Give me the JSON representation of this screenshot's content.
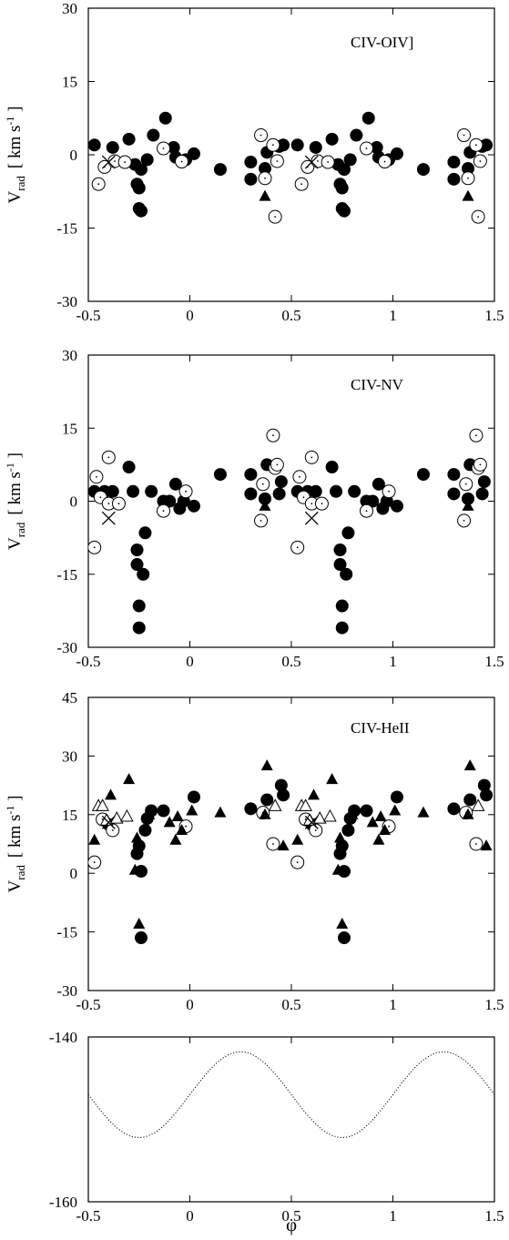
{
  "xlabel": "φ",
  "ylabel": {
    "main": "V",
    "sub": "rad",
    "unit_open": "[ km s",
    "unit_sup": "-1",
    "unit_close": " ]"
  },
  "chart_data": [
    {
      "type": "scatter",
      "label": "CIV-OIV]",
      "xlim": [
        -0.5,
        1.5
      ],
      "ylim": [
        -30,
        30
      ],
      "xticks": [
        -0.5,
        0,
        0.5,
        1,
        1.5
      ],
      "xtick_labels": [
        "-0.5",
        "0",
        "0.5",
        "1",
        "1.5"
      ],
      "yticks": [
        -30,
        -15,
        0,
        15,
        30
      ],
      "ytick_labels": [
        "-30",
        "-15",
        "0",
        "15",
        "30"
      ],
      "series": [
        {
          "marker": "filled-circle",
          "points": [
            [
              -0.47,
              2
            ],
            [
              -0.38,
              1.5
            ],
            [
              -0.3,
              3.2
            ],
            [
              -0.27,
              -2
            ],
            [
              -0.26,
              -6
            ],
            [
              -0.25,
              -6.8
            ],
            [
              -0.25,
              -11
            ],
            [
              -0.24,
              -11.5
            ],
            [
              -0.24,
              -3
            ],
            [
              -0.21,
              -1
            ],
            [
              -0.18,
              4
            ],
            [
              -0.12,
              7.5
            ],
            [
              -0.08,
              1.5
            ],
            [
              -0.07,
              -0.5
            ],
            [
              -0.04,
              -1.5
            ],
            [
              -0.02,
              -1
            ],
            [
              0.02,
              0.2
            ],
            [
              0.15,
              -3
            ],
            [
              0.3,
              -1.5
            ],
            [
              0.3,
              -5
            ],
            [
              0.37,
              -2.8
            ],
            [
              0.38,
              0.5
            ],
            [
              0.44,
              1.7
            ],
            [
              0.46,
              2
            ]
          ]
        },
        {
          "marker": "open-circle",
          "points": [
            [
              -0.45,
              -6
            ],
            [
              -0.42,
              -2.5
            ],
            [
              -0.37,
              -1.3
            ],
            [
              -0.32,
              -1.5
            ],
            [
              -0.13,
              1.3
            ],
            [
              -0.04,
              -1.4
            ],
            [
              0.35,
              4
            ],
            [
              0.37,
              -4.8
            ],
            [
              0.41,
              2
            ],
            [
              0.42,
              -12.7
            ],
            [
              0.43,
              -1.3
            ]
          ]
        },
        {
          "marker": "cross",
          "points": [
            [
              -0.4,
              -1.5
            ]
          ]
        },
        {
          "marker": "filled-triangle",
          "points": [
            [
              0.37,
              -8.5
            ]
          ]
        }
      ]
    },
    {
      "type": "scatter",
      "label": "CIV-NV",
      "xlim": [
        -0.5,
        1.5
      ],
      "ylim": [
        -30,
        30
      ],
      "xticks": [
        -0.5,
        0,
        0.5,
        1,
        1.5
      ],
      "xtick_labels": [
        "-0.5",
        "0",
        "0.5",
        "1",
        "1.5"
      ],
      "yticks": [
        -30,
        -15,
        0,
        15,
        30
      ],
      "ytick_labels": [
        "-30",
        "-15",
        "0",
        "15",
        "30"
      ],
      "series": [
        {
          "marker": "filled-circle",
          "points": [
            [
              -0.47,
              2
            ],
            [
              -0.42,
              2
            ],
            [
              -0.38,
              2
            ],
            [
              -0.3,
              7
            ],
            [
              -0.28,
              2
            ],
            [
              -0.26,
              -10
            ],
            [
              -0.26,
              -13
            ],
            [
              -0.25,
              -21.5
            ],
            [
              -0.25,
              -26
            ],
            [
              -0.23,
              -15
            ],
            [
              -0.22,
              -6.5
            ],
            [
              -0.19,
              2
            ],
            [
              -0.13,
              0
            ],
            [
              -0.1,
              0
            ],
            [
              -0.07,
              3.5
            ],
            [
              -0.05,
              -1.5
            ],
            [
              -0.03,
              0
            ],
            [
              0.02,
              -1
            ],
            [
              0.15,
              5.5
            ],
            [
              0.3,
              5.5
            ],
            [
              0.3,
              1.5
            ],
            [
              0.37,
              0.5
            ],
            [
              0.38,
              7.5
            ],
            [
              0.44,
              1.5
            ],
            [
              0.45,
              4
            ]
          ]
        },
        {
          "marker": "open-circle",
          "points": [
            [
              -0.47,
              -9.5
            ],
            [
              -0.46,
              5
            ],
            [
              -0.44,
              0.8
            ],
            [
              -0.4,
              9
            ],
            [
              -0.4,
              -0.5
            ],
            [
              -0.35,
              -0.5
            ],
            [
              -0.13,
              -2
            ],
            [
              -0.02,
              2
            ],
            [
              0.35,
              -4
            ],
            [
              0.36,
              3.5
            ],
            [
              0.41,
              13.5
            ],
            [
              0.42,
              6.8
            ],
            [
              0.43,
              7.5
            ]
          ]
        },
        {
          "marker": "cross",
          "points": [
            [
              -0.4,
              -3.5
            ]
          ]
        },
        {
          "marker": "filled-triangle",
          "points": [
            [
              0.37,
              -1
            ]
          ]
        }
      ]
    },
    {
      "type": "scatter",
      "label": "CIV-HeII",
      "xlim": [
        -0.5,
        1.5
      ],
      "ylim": [
        -30,
        45
      ],
      "xticks": [
        -0.5,
        0,
        0.5,
        1,
        1.5
      ],
      "xtick_labels": [
        "-0.5",
        "0",
        "0.5",
        "1",
        "1.5"
      ],
      "yticks": [
        -30,
        -15,
        0,
        15,
        30,
        45
      ],
      "ytick_labels": [
        "-30",
        "-15",
        "0",
        "15",
        "30",
        "45"
      ],
      "series": [
        {
          "marker": "filled-circle",
          "points": [
            [
              -0.4,
              12.5
            ],
            [
              -0.26,
              5
            ],
            [
              -0.25,
              7
            ],
            [
              -0.24,
              0.5
            ],
            [
              -0.24,
              -16.5
            ],
            [
              -0.22,
              11
            ],
            [
              -0.21,
              14
            ],
            [
              -0.19,
              16
            ],
            [
              -0.13,
              16
            ],
            [
              0.02,
              19.5
            ],
            [
              0.3,
              16.5
            ],
            [
              0.38,
              18.8
            ],
            [
              0.45,
              22.5
            ],
            [
              0.46,
              20
            ]
          ]
        },
        {
          "marker": "open-circle",
          "points": [
            [
              -0.47,
              2.8
            ],
            [
              -0.43,
              13.8
            ],
            [
              -0.38,
              11
            ],
            [
              -0.02,
              12
            ],
            [
              0.36,
              15.5
            ],
            [
              0.41,
              7.5
            ]
          ]
        },
        {
          "marker": "open-triangle",
          "points": [
            [
              -0.45,
              17.2
            ],
            [
              -0.43,
              17.2
            ],
            [
              -0.41,
              13.5
            ],
            [
              -0.36,
              14
            ],
            [
              -0.31,
              14.5
            ],
            [
              0.42,
              17.2
            ]
          ]
        },
        {
          "marker": "filled-triangle",
          "points": [
            [
              -0.47,
              8.5
            ],
            [
              -0.39,
              20
            ],
            [
              -0.3,
              24
            ],
            [
              -0.27,
              0.8
            ],
            [
              -0.26,
              9
            ],
            [
              -0.25,
              -13
            ],
            [
              -0.2,
              15
            ],
            [
              -0.1,
              13
            ],
            [
              -0.07,
              8.5
            ],
            [
              -0.06,
              14.5
            ],
            [
              -0.04,
              11
            ],
            [
              0.01,
              16
            ],
            [
              0.15,
              15.5
            ],
            [
              0.37,
              15
            ],
            [
              0.38,
              27.5
            ],
            [
              0.46,
              7
            ]
          ]
        },
        {
          "marker": "cross",
          "points": [
            [
              -0.4,
              13
            ]
          ]
        }
      ]
    },
    {
      "type": "line",
      "label": "",
      "xlim": [
        -0.5,
        1.5
      ],
      "ylim": [
        -160,
        -140
      ],
      "xticks": [
        -0.5,
        0,
        0.5,
        1,
        1.5
      ],
      "xtick_labels": [
        "-0.5",
        "0",
        "0.5",
        "1",
        "1.5"
      ],
      "yticks": [
        -160,
        -140
      ],
      "ytick_labels": [
        "-160",
        "-140"
      ],
      "line_style": "dotted",
      "curve": {
        "function": "sinusoid",
        "mean": -147,
        "amplitude": 5.2,
        "period": 1.0,
        "max_at_phase": 0.25
      }
    }
  ]
}
